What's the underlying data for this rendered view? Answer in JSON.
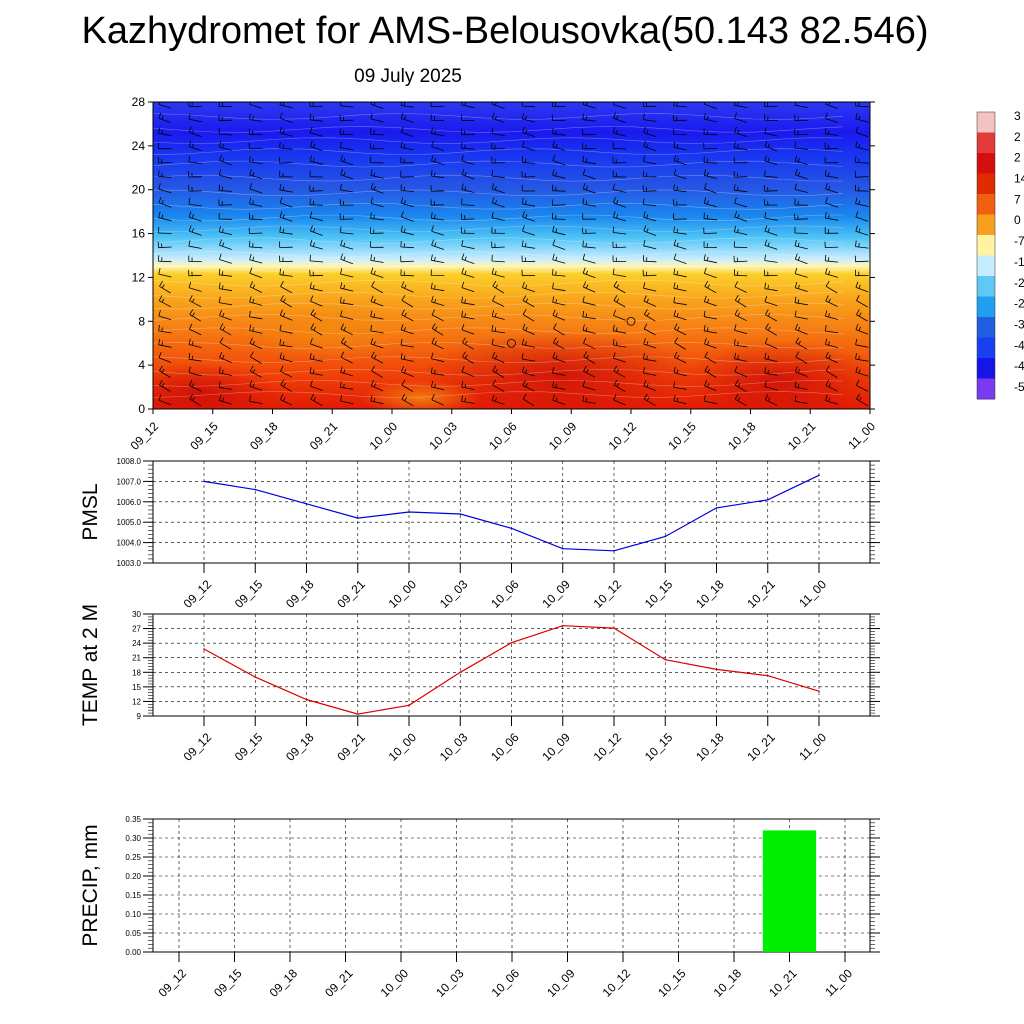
{
  "header": {
    "title": "Kazhydromet for AMS-Belousovka(50.143 82.546)",
    "date": "09 July 2025"
  },
  "chart_data": [
    {
      "type": "heatmap",
      "y_ticks": [
        0,
        4,
        8,
        12,
        16,
        20,
        24,
        28
      ],
      "x_ticks": [
        "09_12",
        "09_15",
        "09_18",
        "09_21",
        "10_00",
        "10_03",
        "10_06",
        "10_09",
        "10_12",
        "10_15",
        "10_18",
        "10_21",
        "11_00"
      ],
      "ylim": [
        0,
        28
      ],
      "colorbar_labels": [
        "3",
        "2",
        "2",
        "14",
        "7",
        "0",
        "-7",
        "-1",
        "-2",
        "-2",
        "-3",
        "-4",
        "-4",
        "-5"
      ],
      "colorbar_colors": [
        "#f4c2c2",
        "#e33a3a",
        "#d40f0f",
        "#e02a00",
        "#f06010",
        "#f7a020",
        "#fff3a0",
        "#c5ecff",
        "#5ec9f5",
        "#1e9ff0",
        "#2060e0",
        "#1a3ff0",
        "#1515e8",
        "#7a3af0"
      ],
      "wind_barbs": true,
      "calm_markers": [
        {
          "time": "10_06",
          "level": 6
        },
        {
          "time": "10_12",
          "level": 8
        }
      ]
    },
    {
      "type": "line",
      "ylabel": "PMSL",
      "color": "#0000dd",
      "ylim": [
        1003.0,
        1008.0
      ],
      "y_ticks": [
        "1003.0",
        "1004.0",
        "1005.0",
        "1006.0",
        "1007.0",
        "1008.0"
      ],
      "x": [
        "09_12",
        "09_15",
        "09_18",
        "09_21",
        "10_00",
        "10_03",
        "10_06",
        "10_09",
        "10_12",
        "10_15",
        "10_18",
        "10_21",
        "11_00"
      ],
      "values": [
        1007.0,
        1006.6,
        1005.9,
        1005.2,
        1005.5,
        1005.4,
        1004.7,
        1003.7,
        1003.6,
        1004.3,
        1005.7,
        1006.1,
        1007.3
      ],
      "grid": true
    },
    {
      "type": "line",
      "ylabel": "TEMP at 2 M",
      "color": "#dd0000",
      "ylim": [
        9,
        30
      ],
      "y_ticks": [
        "9",
        "12",
        "15",
        "18",
        "21",
        "24",
        "27",
        "30"
      ],
      "x": [
        "09_12",
        "09_15",
        "09_18",
        "09_21",
        "10_00",
        "10_03",
        "10_06",
        "10_09",
        "10_12",
        "10_15",
        "10_18",
        "10_21",
        "11_00"
      ],
      "values": [
        22.8,
        17.0,
        12.4,
        9.4,
        11.2,
        18.0,
        24.1,
        27.6,
        27.1,
        20.6,
        18.6,
        17.3,
        14.1
      ],
      "grid": true
    },
    {
      "type": "bar",
      "ylabel": "PRECIP, mm",
      "color": "#00ee00",
      "ylim": [
        0,
        0.35
      ],
      "y_ticks": [
        "0.00",
        "0.05",
        "0.10",
        "0.15",
        "0.20",
        "0.25",
        "0.30",
        "0.35"
      ],
      "categories": [
        "09_12",
        "09_15",
        "09_18",
        "09_21",
        "10_00",
        "10_03",
        "10_06",
        "10_09",
        "10_12",
        "10_15",
        "10_18",
        "10_21",
        "11_00"
      ],
      "values": [
        0,
        0,
        0,
        0,
        0,
        0,
        0,
        0,
        0,
        0,
        0,
        0.32,
        0
      ],
      "grid": true
    }
  ]
}
